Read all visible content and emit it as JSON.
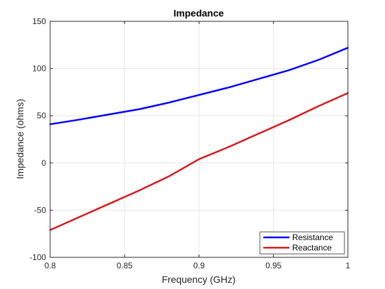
{
  "chart_data": {
    "type": "line",
    "title": "Impedance",
    "xlabel": "Frequency (GHz)",
    "ylabel": "Impedance (ohms)",
    "xlim": [
      0.8,
      1.0
    ],
    "ylim": [
      -100,
      150
    ],
    "xticks": [
      0.8,
      0.85,
      0.9,
      0.95,
      1.0
    ],
    "xtick_labels": [
      "0.8",
      "0.85",
      "0.9",
      "0.95",
      "1"
    ],
    "yticks": [
      -100,
      -50,
      0,
      50,
      100,
      150
    ],
    "ytick_labels": [
      "-100",
      "-50",
      "0",
      "50",
      "100",
      "150"
    ],
    "grid": true,
    "legend_location": "bottom-right",
    "series": [
      {
        "name": "Resistance",
        "color": "#0000ff",
        "x": [
          0.8,
          0.82,
          0.84,
          0.86,
          0.88,
          0.9,
          0.92,
          0.94,
          0.96,
          0.98,
          1.0
        ],
        "y": [
          41,
          46,
          51.5,
          57,
          64,
          72,
          80,
          89,
          98,
          109,
          122
        ]
      },
      {
        "name": "Reactance",
        "color": "#d9181c",
        "x": [
          0.8,
          0.82,
          0.84,
          0.86,
          0.88,
          0.9,
          0.92,
          0.94,
          0.96,
          0.98,
          1.0
        ],
        "y": [
          -71,
          -57,
          -43,
          -29,
          -14,
          4,
          17,
          31,
          45,
          60,
          74
        ]
      }
    ]
  }
}
